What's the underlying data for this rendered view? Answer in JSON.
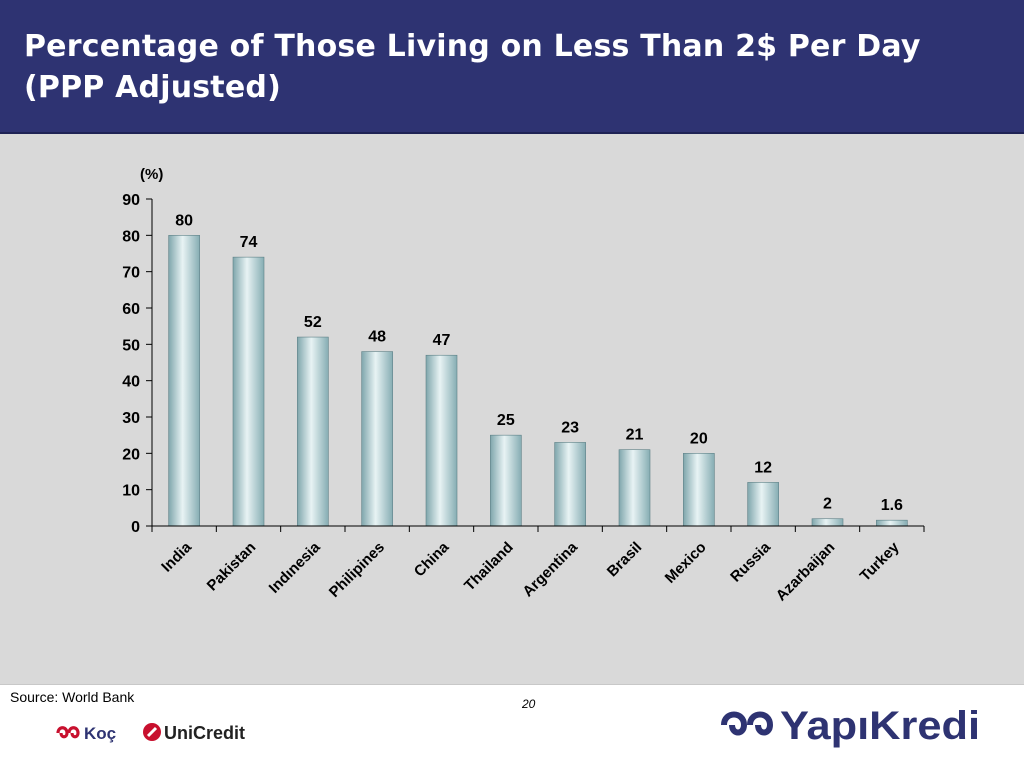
{
  "slide": {
    "title": "Percentage of Those Living on Less Than 2$ Per Day (PPP Adjusted)",
    "source": "Source: World Bank",
    "page_number": "20"
  },
  "logos": {
    "koc": "Koç",
    "unicredit": "UniCredit",
    "yapikredi": "YapıKredi"
  },
  "colors": {
    "header": "#2e3372",
    "chart_background": "#d9d9d9",
    "bar_fill": "#9fc3c8",
    "bar_highlight": "#e8f3f4",
    "koc_red": "#c8102e",
    "yapikredi_blue": "#2e3372"
  },
  "chart_data": {
    "type": "bar",
    "title": "",
    "ylabel": "(%)",
    "xlabel": "",
    "categories": [
      "India",
      "Pakistan",
      "Indınesia",
      "Philipines",
      "China",
      "Thailand",
      "Argentina",
      "Brasil",
      "Mexico",
      "Russia",
      "Azarbaijan",
      "Turkey"
    ],
    "values": [
      80,
      74,
      52,
      48,
      47,
      25,
      23,
      21,
      20,
      12,
      2,
      1.6
    ],
    "data_labels": [
      "80",
      "74",
      "52",
      "48",
      "47",
      "25",
      "23",
      "21",
      "20",
      "12",
      "2",
      "1.6"
    ],
    "ylim": [
      0,
      90
    ],
    "yticks": [
      0,
      10,
      20,
      30,
      40,
      50,
      60,
      70,
      80,
      90
    ],
    "grid": false,
    "legend": "none"
  }
}
